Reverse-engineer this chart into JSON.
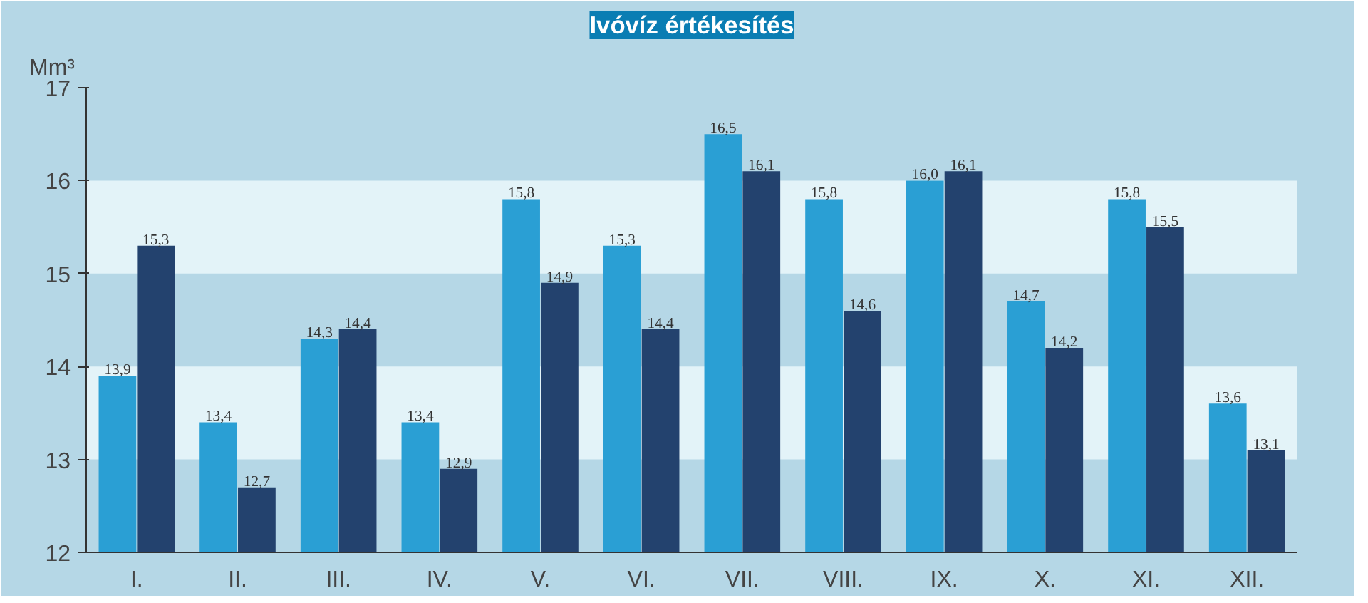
{
  "chart_data": {
    "type": "bar",
    "title": "Ivóvíz értékesítés",
    "ylabel": "Mm³",
    "categories": [
      "I.",
      "II.",
      "III.",
      "IV.",
      "V.",
      "VI.",
      "VII.",
      "VIII.",
      "IX.",
      "X.",
      "XI.",
      "XII."
    ],
    "series": [
      {
        "color": "#2a9fd4",
        "values": [
          13.9,
          13.4,
          14.3,
          13.4,
          15.8,
          15.3,
          16.5,
          15.8,
          16.0,
          14.7,
          15.8,
          13.6
        ],
        "value_labels": [
          "13,9",
          "13,4",
          "14,3",
          "13,4",
          "15,8",
          "15,3",
          "16,5",
          "15,8",
          "16,0",
          "14,7",
          "15,8",
          "13,6"
        ]
      },
      {
        "color": "#23426e",
        "values": [
          15.3,
          12.7,
          14.4,
          12.9,
          14.9,
          14.4,
          16.1,
          14.6,
          16.1,
          14.2,
          15.5,
          13.1
        ],
        "value_labels": [
          "15,3",
          "12,7",
          "14,4",
          "12,9",
          "14,9",
          "14,4",
          "16,1",
          "14,6",
          "16,1",
          "14,2",
          "15,5",
          "13,1"
        ]
      }
    ],
    "ylim": [
      12,
      17
    ],
    "yticks": [
      12,
      13,
      14,
      15,
      16,
      17
    ],
    "bands": [
      {
        "axis": "y",
        "from": 13,
        "to": 14,
        "color": "#e3f3f8"
      },
      {
        "axis": "y",
        "from": 15,
        "to": 16,
        "color": "#e3f3f8"
      }
    ]
  }
}
